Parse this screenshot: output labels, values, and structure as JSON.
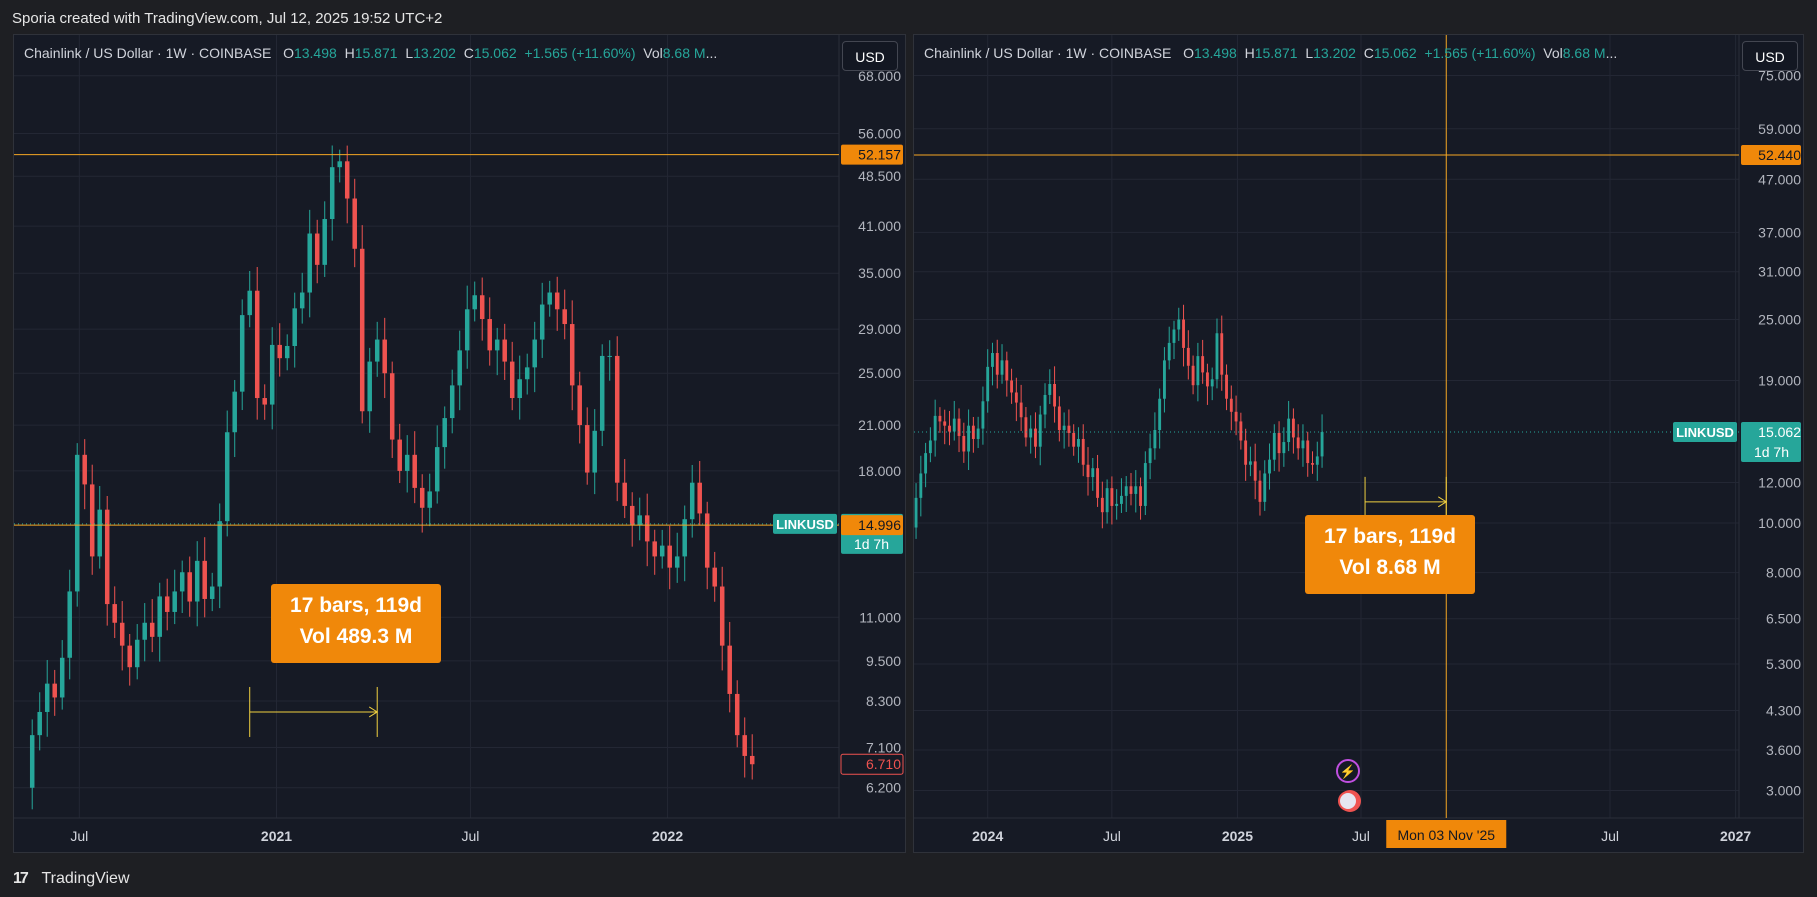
{
  "header": {
    "caption": "Sporia created with TradingView.com, Jul 12, 2025 19:52 UTC+2"
  },
  "footer": {
    "logo_text": "TradingView",
    "logo_mark": "17"
  },
  "colors": {
    "up": "#26a69a",
    "down": "#ef5350",
    "accent": "#f0880a",
    "level": "#f5a623",
    "bg": "#161a25"
  },
  "chart_data": [
    {
      "type": "candlestick",
      "symbol": "LINKUSD",
      "title": "Chainlink / US Dollar · 1W · COINBASE",
      "ohlc": {
        "O": "13.498",
        "H": "15.871",
        "L": "13.202",
        "C": "15.062",
        "change": "+1.565 (+11.60%)",
        "vol_label": "Vol",
        "vol": "8.68 M"
      },
      "y_scale": "log",
      "ylim": [
        5.6,
        78
      ],
      "x_ticks": [
        {
          "label": "Jul",
          "date": "2020-07-01"
        },
        {
          "label": "2021",
          "date": "2021-01-01"
        },
        {
          "label": "Jul",
          "date": "2021-07-01"
        },
        {
          "label": "2022",
          "date": "2022-01-01"
        }
      ],
      "xlim": [
        "2020-05-01",
        "2022-06-10"
      ],
      "y_ticks": [
        "68.000",
        "56.000",
        "48.500",
        "41.000",
        "35.000",
        "29.000",
        "25.000",
        "21.000",
        "18.000",
        "11.000",
        "9.500",
        "8.300",
        "7.100",
        "6.200"
      ],
      "unit_button": "USD",
      "price_tags": [
        {
          "label": "52.157",
          "value": 52.157,
          "style": "orange"
        },
        {
          "label": "15.062",
          "value": 15.062,
          "style": "teal",
          "sub": "1d 7h"
        },
        {
          "label": "14.996",
          "value": 14.996,
          "style": "orange"
        },
        {
          "label": "6.710",
          "value": 6.71,
          "style": "red-outline"
        }
      ],
      "symbol_tag": "LINKUSD",
      "horizontal_lines": [
        52.157,
        14.996
      ],
      "measure": {
        "line1": "17 bars, 119d",
        "line2": "Vol 489.3 M",
        "from": "2020-12-07",
        "to": "2021-04-05",
        "y": 8.0
      },
      "closes": [
        6.2,
        7.4,
        8.0,
        8.8,
        8.4,
        9.6,
        12.0,
        19.0,
        17.2,
        13.5,
        15.8,
        11.5,
        10.8,
        10.0,
        9.3,
        10.2,
        10.8,
        10.3,
        11.8,
        11.2,
        12.0,
        12.8,
        11.6,
        13.3,
        11.7,
        12.2,
        15.2,
        20.5,
        23.5,
        30.4,
        33.0,
        23.0,
        22.5,
        27.5,
        26.3,
        27.4,
        31.1,
        32.8,
        40.0,
        36.0,
        42.0,
        50.0,
        51.0,
        45.0,
        38.0,
        22.0,
        26.0,
        28.0,
        25.0,
        20.0,
        18.0,
        19.0,
        17.0,
        15.9,
        16.8,
        19.5,
        21.5,
        24.0,
        27.0,
        31.0,
        32.5,
        30.0,
        27.0,
        28.0,
        26.0,
        23.0,
        24.5,
        25.5,
        28.0,
        31.5,
        32.8,
        31.0,
        29.5,
        24.0,
        21.0,
        17.9,
        20.6,
        26.5,
        26.5,
        17.3,
        16.0,
        15.0,
        15.5,
        14.2,
        13.5,
        14.0,
        13.0,
        13.5,
        15.3,
        17.3,
        15.6,
        13.0,
        12.2,
        10.0,
        8.5,
        7.4,
        6.9,
        6.71
      ]
    },
    {
      "type": "candlestick",
      "symbol": "LINKUSD",
      "title": "Chainlink / US Dollar · 1W · COINBASE",
      "ohlc": {
        "O": "13.498",
        "H": "15.871",
        "L": "13.202",
        "C": "15.062",
        "change": "+1.565 (+11.60%)",
        "vol_label": "Vol",
        "vol": "8.68 M"
      },
      "y_scale": "log",
      "ylim": [
        2.65,
        90
      ],
      "x_ticks": [
        {
          "label": "2024",
          "date": "2024-01-01"
        },
        {
          "label": "Jul",
          "date": "2024-07-01"
        },
        {
          "label": "2025",
          "date": "2025-01-01"
        },
        {
          "label": "Jul",
          "date": "2025-07-01"
        },
        {
          "label": "Jul",
          "date": "2026-07-01"
        },
        {
          "label": "2027",
          "date": "2027-01-01"
        }
      ],
      "xlim": [
        "2023-09-15",
        "2027-01-06"
      ],
      "y_ticks": [
        "75.000",
        "59.000",
        "47.000",
        "37.000",
        "31.000",
        "25.000",
        "19.000",
        "12.000",
        "10.000",
        "8.000",
        "6.500",
        "5.300",
        "4.300",
        "3.600",
        "3.000"
      ],
      "unit_button": "USD",
      "price_tags": [
        {
          "label": "52.440",
          "value": 52.44,
          "style": "orange"
        },
        {
          "label": "15.062",
          "value": 15.062,
          "style": "teal",
          "sub": "1d 7h"
        }
      ],
      "symbol_tag": "LINKUSD",
      "horizontal_lines": [
        52.44
      ],
      "crosshair": {
        "date": "2025-11-03",
        "label": "Mon 03 Nov '25"
      },
      "measure": {
        "line1": "17 bars, 119d",
        "line2": "Vol 8.68 M",
        "from": "2025-07-07",
        "to": "2025-11-03",
        "y": 11.0
      },
      "closes": [
        7.3,
        9.8,
        11.2,
        12.5,
        13.7,
        14.5,
        16.2,
        15.8,
        15.5,
        15.1,
        16.0,
        14.8,
        13.8,
        15.5,
        14.6,
        15.3,
        17.3,
        20.2,
        21.5,
        19.5,
        20.8,
        19.0,
        18.0,
        17.2,
        16.1,
        14.7,
        15.3,
        14.1,
        16.3,
        17.8,
        18.7,
        16.9,
        15.2,
        15.5,
        15.0,
        14.1,
        14.6,
        13.0,
        12.3,
        12.8,
        11.2,
        10.5,
        11.7,
        10.8,
        10.9,
        11.3,
        11.8,
        11.4,
        11.8,
        10.8,
        13.1,
        14.0,
        15.2,
        17.5,
        20.8,
        22.5,
        23.9,
        25.0,
        22.0,
        20.3,
        18.6,
        21.2,
        19.7,
        18.5,
        19.1,
        23.5,
        19.5,
        17.5,
        16.5,
        15.8,
        14.5,
        13.0,
        13.2,
        12.1,
        11.0,
        12.5,
        13.3,
        15.0,
        13.7,
        14.4,
        16.0,
        14.7,
        14.0,
        14.5,
        13.1,
        13.0,
        13.498,
        15.062
      ]
    }
  ]
}
